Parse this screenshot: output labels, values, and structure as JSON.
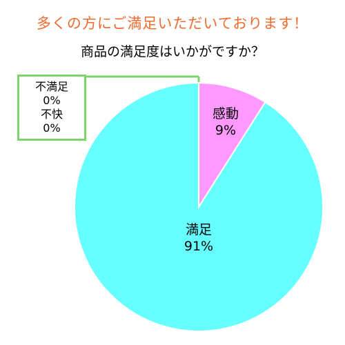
{
  "headline": "多くの方にご満足いただいております！",
  "colors": {
    "headline": "#ef6a2c",
    "slice_kando": "#ff99ff",
    "slice_manzoku": "#66ffff",
    "callout_border": "#7ad66b"
  },
  "chart_data": {
    "type": "pie",
    "title": "商品の満足度はいかがですか？",
    "slices": [
      {
        "label": "感動",
        "value": 9,
        "value_label": "9%",
        "color": "#ff99ff"
      },
      {
        "label": "満足",
        "value": 91,
        "value_label": "91%",
        "color": "#66ffff"
      },
      {
        "label": "不満足",
        "value": 0,
        "value_label": "0%",
        "color": "#7ad66b"
      },
      {
        "label": "不快",
        "value": 0,
        "value_label": "0%",
        "color": "#7ad66b"
      }
    ],
    "start_direction": "top",
    "direction": "clockwise",
    "legend": "none"
  }
}
